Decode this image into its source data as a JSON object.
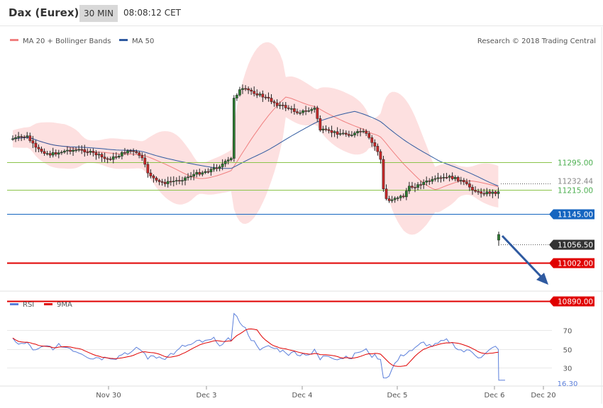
{
  "header": {
    "instrument": "Dax (Eurex)",
    "timeframe": "30 MIN",
    "time": "08:08:12 CET"
  },
  "chart_data": [
    {
      "type": "candlestick",
      "legend": [
        {
          "name": "MA 20 + Bollinger Bands",
          "color": "#f08080"
        },
        {
          "name": "MA 50",
          "color": "#2f5aa0"
        }
      ],
      "credit": "Research © 2018 Trading Central",
      "levels": [
        {
          "label": "11295.00",
          "value": 11295.0,
          "kind": "resistance",
          "color": "#8bc34a"
        },
        {
          "label": "11232.44",
          "value": 11232.44,
          "kind": "current-ma",
          "color": "#aaaaaa"
        },
        {
          "label": "11215.00",
          "value": 11215.0,
          "kind": "resistance",
          "color": "#8bc34a"
        },
        {
          "label": "11145.00",
          "value": 11145.0,
          "kind": "pivot",
          "color": "#1565c0"
        },
        {
          "label": "11056.50",
          "value": 11056.5,
          "kind": "last-price",
          "color": "#333333"
        },
        {
          "label": "11002.00",
          "value": 11002.0,
          "kind": "support",
          "color": "#e00000"
        },
        {
          "label": "10890.00",
          "value": 10890.0,
          "kind": "support",
          "color": "#e00000"
        }
      ],
      "x_ticks": [
        "Nov 30",
        "Dec 3",
        "Dec 4",
        "Dec 5",
        "Dec 6",
        "Dec 20"
      ],
      "ylim": [
        10880,
        11640
      ]
    },
    {
      "type": "line",
      "legend": [
        {
          "name": "RSI",
          "color": "#5b7fdb"
        },
        {
          "name": "9MA",
          "color": "#e00000"
        }
      ],
      "y_ticks": [
        "70",
        "50",
        "30"
      ],
      "last_value": "16.30",
      "ylim": [
        10,
        90
      ]
    }
  ]
}
